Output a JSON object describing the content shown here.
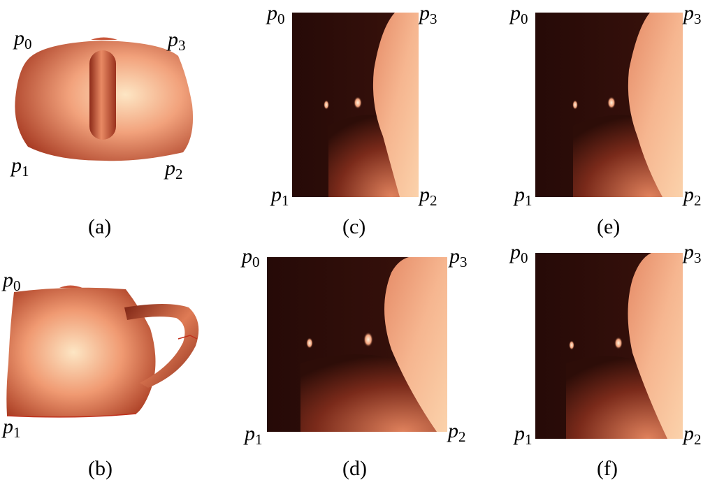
{
  "figure": {
    "panels": [
      {
        "id": "a",
        "caption": "(a)",
        "corners": [
          {
            "letter": "p",
            "sub": "0"
          },
          {
            "letter": "p",
            "sub": "3"
          },
          {
            "letter": "p",
            "sub": "1"
          },
          {
            "letter": "p",
            "sub": "2"
          }
        ]
      },
      {
        "id": "b",
        "caption": "(b)",
        "corners": [
          {
            "letter": "p",
            "sub": "0"
          },
          {
            "letter": "p",
            "sub": "1"
          }
        ]
      },
      {
        "id": "c",
        "caption": "(c)",
        "corners": [
          {
            "letter": "p",
            "sub": "0"
          },
          {
            "letter": "p",
            "sub": "3"
          },
          {
            "letter": "p",
            "sub": "1"
          },
          {
            "letter": "p",
            "sub": "2"
          }
        ]
      },
      {
        "id": "d",
        "caption": "(d)",
        "corners": [
          {
            "letter": "p",
            "sub": "0"
          },
          {
            "letter": "p",
            "sub": "3"
          },
          {
            "letter": "p",
            "sub": "1"
          },
          {
            "letter": "p",
            "sub": "2"
          }
        ]
      },
      {
        "id": "e",
        "caption": "(e)",
        "corners": [
          {
            "letter": "p",
            "sub": "0"
          },
          {
            "letter": "p",
            "sub": "3"
          },
          {
            "letter": "p",
            "sub": "1"
          },
          {
            "letter": "p",
            "sub": "2"
          }
        ]
      },
      {
        "id": "f",
        "caption": "(f)",
        "corners": [
          {
            "letter": "p",
            "sub": "0"
          },
          {
            "letter": "p",
            "sub": "3"
          },
          {
            "letter": "p",
            "sub": "1"
          },
          {
            "letter": "p",
            "sub": "2"
          }
        ]
      }
    ],
    "colors": {
      "dark": "#2a0c08",
      "mid": "#c45a3c",
      "light": "#f6b88e",
      "highlight": "#fde6c4"
    }
  }
}
